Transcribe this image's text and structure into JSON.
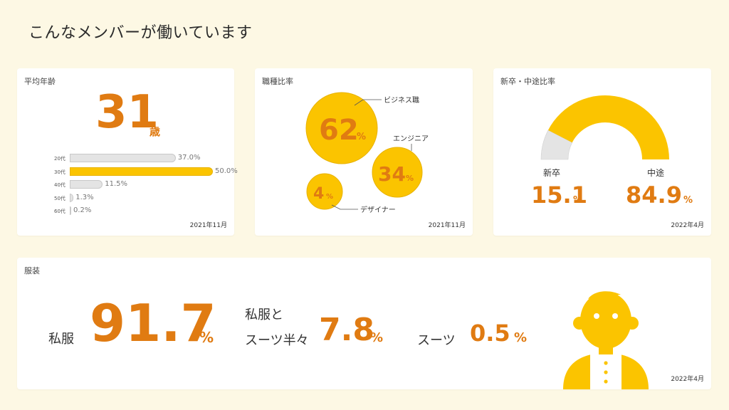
{
  "page": {
    "title": "こんなメンバーが働いています"
  },
  "age": {
    "title": "平均年齢",
    "average": "31",
    "unit": "歳",
    "date": "2021年11月",
    "rows": [
      {
        "label": "20代",
        "value_text": "37.0%",
        "value": 37.0
      },
      {
        "label": "30代",
        "value_text": "50.0%",
        "value": 50.0
      },
      {
        "label": "40代",
        "value_text": "11.5%",
        "value": 11.5
      },
      {
        "label": "50代",
        "value_text": "1.3%",
        "value": 1.3
      },
      {
        "label": "60代",
        "value_text": "0.2%",
        "value": 0.2
      }
    ]
  },
  "job": {
    "title": "職種比率",
    "date": "2021年11月",
    "items": [
      {
        "name": "ビジネス職",
        "value": "62",
        "unit": "%"
      },
      {
        "name": "エンジニア",
        "value": "34",
        "unit": "%"
      },
      {
        "name": "デザイナー",
        "value": "4",
        "unit": "%"
      }
    ]
  },
  "hire": {
    "title": "新卒・中途比率",
    "date": "2022年4月",
    "new_grad": {
      "label": "新卒",
      "value": "15.1",
      "unit": "%",
      "share": 15.1
    },
    "mid_career": {
      "label": "中途",
      "value": "84.9",
      "unit": "%",
      "share": 84.9
    }
  },
  "clothes": {
    "title": "服装",
    "date": "2022年4月",
    "casual": {
      "label": "私服",
      "value": "91.7",
      "unit": "%"
    },
    "half": {
      "label_line1": "私服と",
      "label_line2": "スーツ半々",
      "value": "7.8",
      "unit": "%"
    },
    "suit": {
      "label": "スーツ",
      "value": "0.5",
      "unit": "%"
    }
  },
  "colors": {
    "accent_orange": "#e07b12",
    "yellow": "#fbc400",
    "gray": "#e4e4e4",
    "background": "#fdf8e4"
  }
}
